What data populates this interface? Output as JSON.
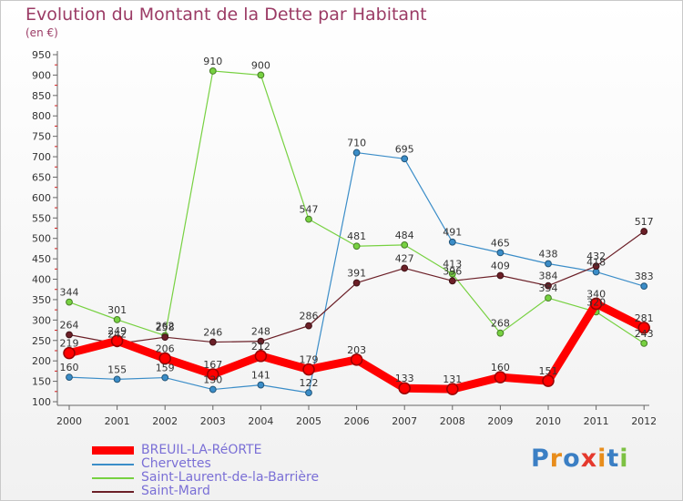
{
  "title": "Evolution du Montant de la Dette par Habitant",
  "subtitle": "(en €)",
  "chart_data": {
    "type": "line",
    "title": "Evolution du Montant de la Dette par Habitant",
    "ylabel": "(en €)",
    "xlabel": "",
    "x": [
      "2000",
      "2001",
      "2002",
      "2003",
      "2004",
      "2005",
      "2006",
      "2007",
      "2008",
      "2009",
      "2010",
      "2011",
      "2012"
    ],
    "ylim": [
      100,
      950
    ],
    "yticks": [
      100,
      150,
      200,
      250,
      300,
      350,
      400,
      450,
      500,
      550,
      600,
      650,
      700,
      750,
      800,
      850,
      900,
      950
    ],
    "grid": false,
    "legend_position": "bottom-left",
    "series": [
      {
        "name": "BREUIL-LA-RéORTE",
        "color": "#ff0000",
        "values": [
          219,
          249,
          206,
          167,
          212,
          179,
          203,
          133,
          131,
          160,
          151,
          340,
          281
        ]
      },
      {
        "name": "Chervettes",
        "color": "#3b8dc8",
        "values": [
          160,
          155,
          159,
          130,
          141,
          122,
          710,
          695,
          491,
          465,
          438,
          418,
          383
        ]
      },
      {
        "name": "Saint-Laurent-de-la-Barrière",
        "color": "#77d141",
        "values": [
          344,
          301,
          262,
          910,
          900,
          547,
          481,
          484,
          413,
          268,
          354,
          320,
          243
        ]
      },
      {
        "name": "Saint-Mard",
        "color": "#6b1f27",
        "values": [
          264,
          242,
          258,
          246,
          248,
          286,
          391,
          427,
          396,
          409,
          384,
          432,
          517
        ]
      }
    ]
  },
  "logo": {
    "letters": [
      "P",
      "r",
      "o",
      "x",
      "i",
      "t",
      "i"
    ],
    "colors": [
      "#3b7fc4",
      "#e88d1c",
      "#3b7fc4",
      "#e5392d",
      "#e88d1c",
      "#3b7fc4",
      "#7dc143"
    ]
  }
}
